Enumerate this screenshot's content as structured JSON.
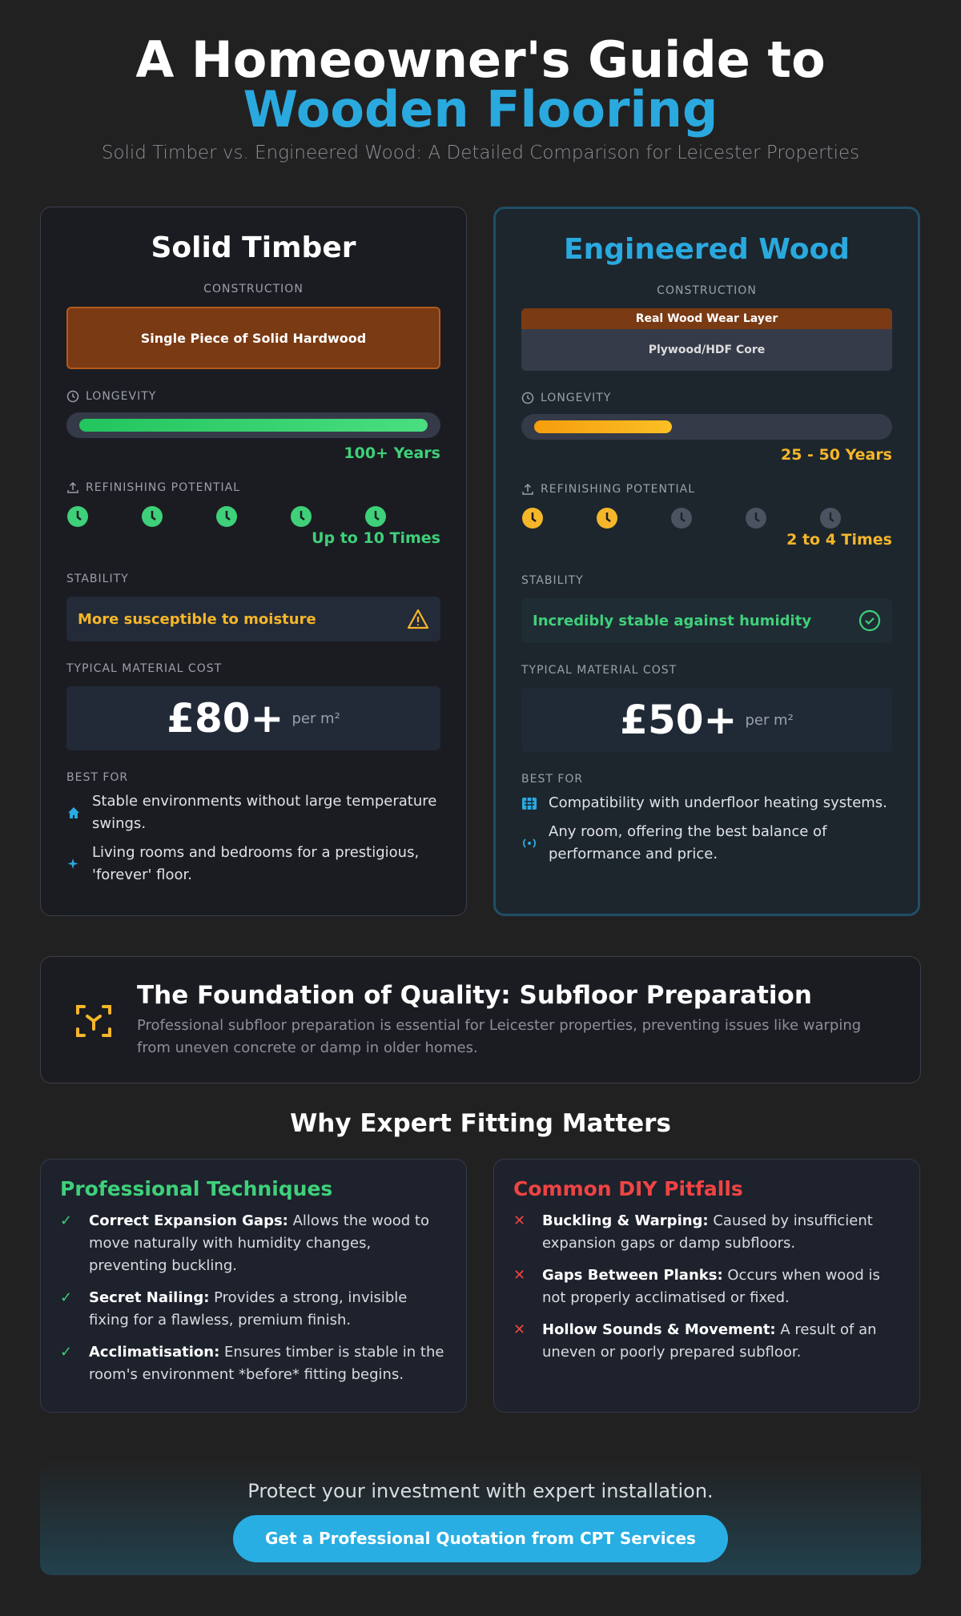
{
  "header": {
    "title": "A Homeowner's Guide to ",
    "title_highlight": "Wooden Flooring",
    "subtitle": "Solid Timber vs. Engineered Wood: A Detailed Comparison for Leicester Properties"
  },
  "cards": [
    {
      "title": "Solid Timber",
      "construction_label": "CONSTRUCTION",
      "layers": [
        "Single Piece of Solid Hardwood"
      ],
      "longevity_label": "LONGEVITY",
      "longevity_value": "100+ Years",
      "refinishing_label": "REFINISHING POTENTIAL",
      "refinishing_value": "Up to 10 Times",
      "stability_label": "STABILITY",
      "stability_text": "More susceptible to moisture",
      "cost_label": "TYPICAL MATERIAL COST",
      "cost_price": "£80+",
      "cost_unit": "per m²",
      "best_for_label": "BEST FOR",
      "best_for": [
        "Stable environments without large temperature swings.",
        "Living rooms and bedrooms for a prestigious, 'forever' floor."
      ]
    },
    {
      "title": "Engineered Wood",
      "construction_label": "CONSTRUCTION",
      "layers": [
        "Real Wood Wear Layer",
        "Plywood/HDF Core"
      ],
      "longevity_label": "LONGEVITY",
      "longevity_value": "25 - 50 Years",
      "refinishing_label": "REFINISHING POTENTIAL",
      "refinishing_value": "2 to 4 Times",
      "stability_label": "STABILITY",
      "stability_text": "Incredibly stable against humidity",
      "cost_label": "TYPICAL MATERIAL COST",
      "cost_price": "£50+",
      "cost_unit": "per m²",
      "best_for_label": "BEST FOR",
      "best_for": [
        "Compatibility with underfloor heating systems.",
        "Any room, offering the best balance of performance and price."
      ]
    }
  ],
  "foundation": {
    "title": "The Foundation of Quality: Subfloor Preparation",
    "text": "Professional subfloor preparation is essential for Leicester properties, preventing issues like warping from uneven concrete or damp in older homes."
  },
  "fitting": {
    "heading": "Why Expert Fitting Matters",
    "columns": [
      {
        "title": "Professional Techniques",
        "items": [
          {
            "term": "Correct Expansion Gaps:",
            "text": " Allows the wood to move naturally with humidity changes, preventing buckling."
          },
          {
            "term": "Secret Nailing:",
            "text": " Provides a strong, invisible fixing for a flawless, premium finish."
          },
          {
            "term": "Acclimatisation:",
            "text": " Ensures timber is stable in the room's environment *before* fitting begins."
          }
        ]
      },
      {
        "title": "Common DIY Pitfalls",
        "items": [
          {
            "term": "Buckling & Warping:",
            "text": " Caused by insufficient expansion gaps or damp subfloors."
          },
          {
            "term": "Gaps Between Planks:",
            "text": " Occurs when wood is not properly acclimatised or fixed."
          },
          {
            "term": "Hollow Sounds & Movement:",
            "text": " A result of an uneven or poorly prepared subfloor."
          }
        ]
      }
    ]
  },
  "cta": {
    "text": "Protect your investment with expert installation.",
    "button": "Get a Professional Quotation from CPT Services"
  }
}
